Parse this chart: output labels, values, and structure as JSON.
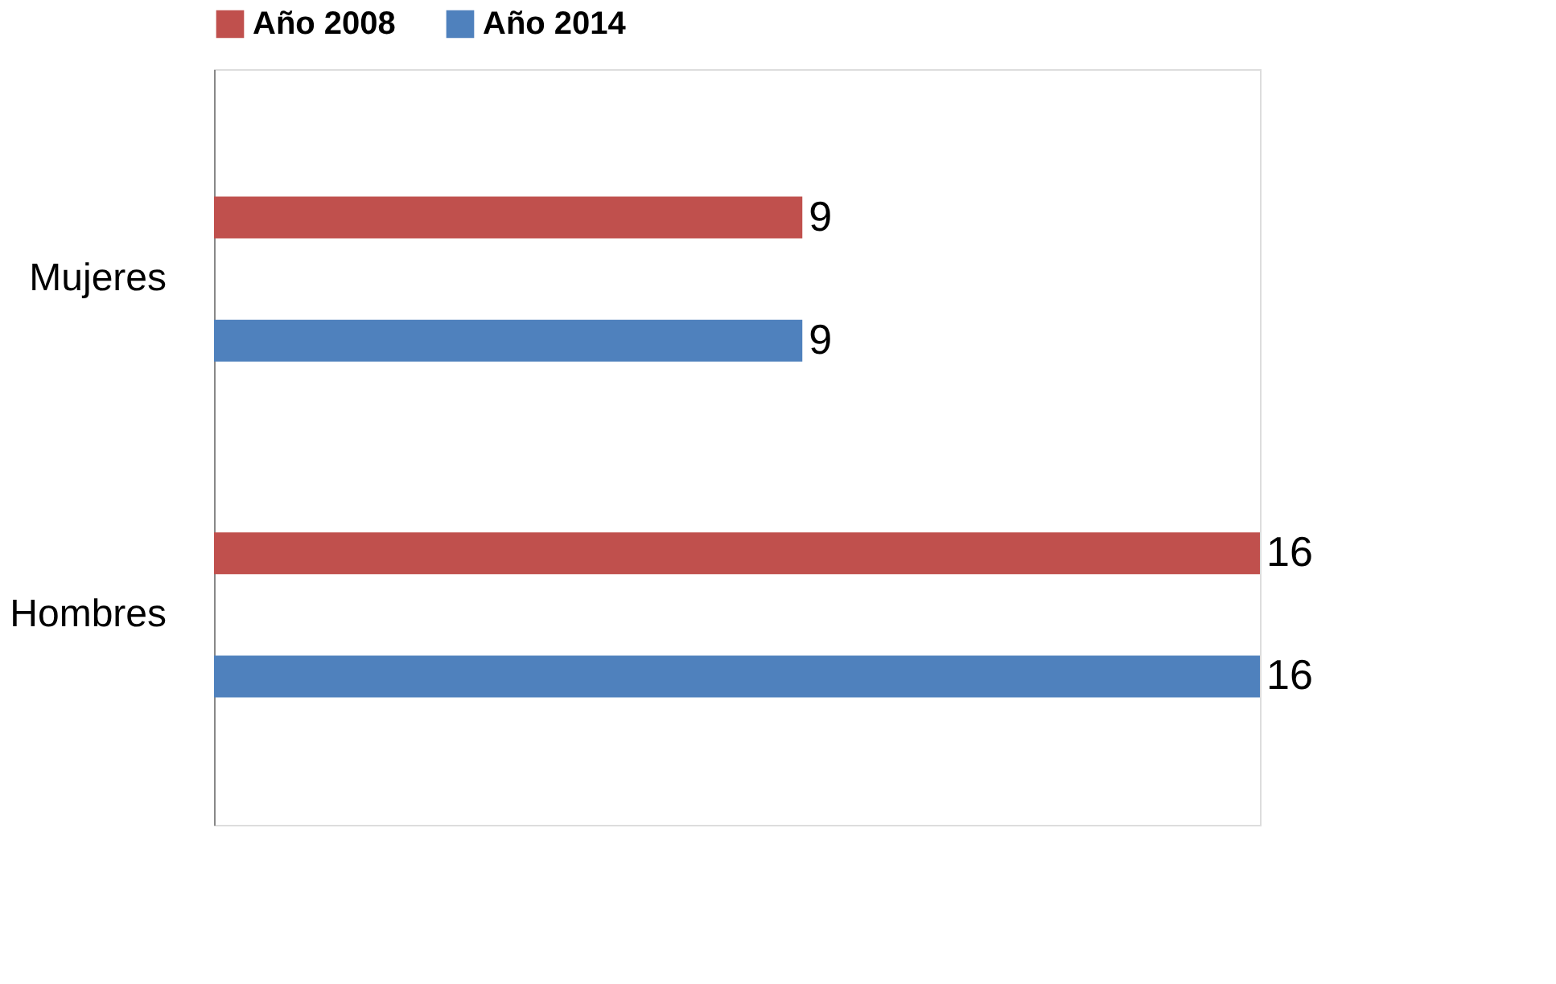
{
  "chart_data": {
    "type": "bar",
    "orientation": "horizontal",
    "categories": [
      "Mujeres",
      "Hombres"
    ],
    "series": [
      {
        "name": "Año 2008",
        "color": "#c0504d",
        "values": [
          9,
          16
        ]
      },
      {
        "name": "Año 2014",
        "color": "#4f81bd",
        "values": [
          9,
          16
        ]
      }
    ],
    "data_labels": true,
    "legend": "top",
    "grid": false
  }
}
